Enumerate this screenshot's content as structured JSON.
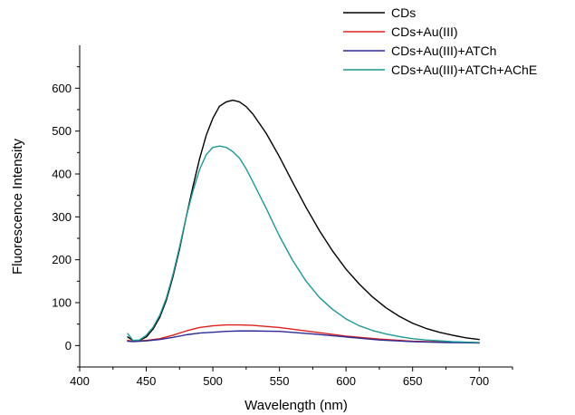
{
  "chart_data": {
    "type": "line",
    "title": "",
    "xlabel": "Wavelength (nm)",
    "ylabel": "Fluorescence Intensity",
    "xlim": [
      400,
      725
    ],
    "ylim": [
      -50,
      700
    ],
    "xticks": [
      400,
      450,
      500,
      550,
      600,
      650,
      700
    ],
    "yticks": [
      0,
      100,
      200,
      300,
      400,
      500,
      600
    ],
    "grid": false,
    "legend_position": "top-right",
    "series": [
      {
        "name": "CDs",
        "color": "#000000",
        "x": [
          436,
          440,
          445,
          450,
          455,
          460,
          465,
          470,
          475,
          480,
          485,
          490,
          495,
          500,
          505,
          510,
          515,
          520,
          525,
          530,
          540,
          550,
          560,
          570,
          580,
          590,
          600,
          610,
          620,
          630,
          640,
          650,
          660,
          670,
          680,
          690,
          700
        ],
        "y": [
          20,
          12,
          12,
          20,
          38,
          65,
          105,
          160,
          225,
          300,
          370,
          435,
          490,
          530,
          558,
          568,
          572,
          568,
          557,
          540,
          495,
          440,
          380,
          322,
          268,
          220,
          178,
          143,
          113,
          88,
          68,
          52,
          40,
          31,
          24,
          18,
          14
        ]
      },
      {
        "name": "CDs+Au(III)",
        "color": "#e0201c",
        "x": [
          436,
          440,
          450,
          460,
          470,
          480,
          490,
          500,
          510,
          520,
          530,
          550,
          575,
          600,
          625,
          650,
          675,
          700
        ],
        "y": [
          12,
          10,
          12,
          16,
          24,
          34,
          42,
          46,
          48,
          48,
          47,
          42,
          32,
          22,
          15,
          10,
          8,
          7
        ]
      },
      {
        "name": "CDs+Au(III)+ATCh",
        "color": "#2a2a96",
        "x": [
          436,
          440,
          450,
          460,
          470,
          480,
          490,
          500,
          510,
          520,
          530,
          550,
          575,
          600,
          625,
          650,
          675,
          700
        ],
        "y": [
          10,
          9,
          11,
          14,
          19,
          25,
          29,
          31,
          33,
          34,
          34,
          33,
          27,
          20,
          13,
          9,
          7,
          6
        ]
      },
      {
        "name": "CDs+Au(III)+ATCh+AChE",
        "color": "#1a9a96",
        "x": [
          436,
          440,
          445,
          450,
          455,
          460,
          465,
          470,
          475,
          480,
          485,
          490,
          495,
          500,
          505,
          510,
          515,
          520,
          525,
          530,
          540,
          550,
          560,
          570,
          580,
          590,
          600,
          610,
          620,
          630,
          640,
          650,
          660,
          670,
          680,
          690,
          700
        ],
        "y": [
          28,
          12,
          13,
          24,
          42,
          70,
          110,
          165,
          230,
          300,
          360,
          410,
          445,
          462,
          465,
          462,
          452,
          437,
          412,
          382,
          320,
          255,
          198,
          150,
          112,
          84,
          62,
          46,
          35,
          27,
          21,
          16,
          13,
          11,
          9,
          8,
          7
        ]
      }
    ]
  }
}
